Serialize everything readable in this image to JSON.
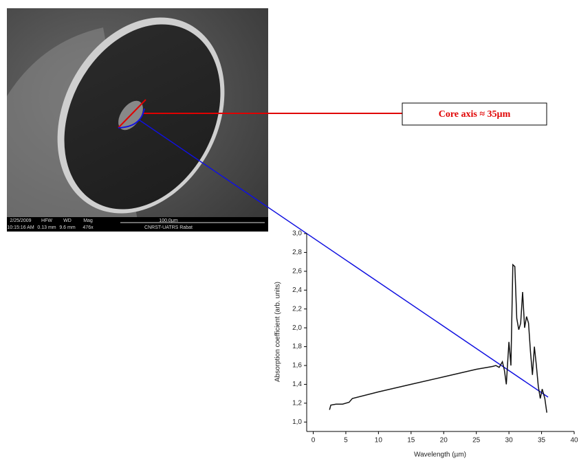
{
  "chart_data": {
    "type": "line",
    "xlabel": "Wavelength (µm)",
    "ylabel": "Absorption coefficient (arb. units)",
    "annotation": "Core axis ≈ 35µm",
    "color": "#111111",
    "x": [
      2.5,
      2.7,
      3.5,
      4.5,
      5.5,
      6,
      10,
      15,
      20,
      25,
      27.5,
      28,
      28.5,
      29,
      29.3,
      29.6,
      30,
      30.3,
      30.6,
      30.9,
      31.2,
      31.5,
      31.8,
      32.1,
      32.4,
      32.7,
      33,
      33.3,
      33.6,
      33.9,
      34.2,
      34.5,
      34.8,
      35.1,
      35.5,
      35.8
    ],
    "values": [
      1.13,
      1.18,
      1.19,
      1.19,
      1.21,
      1.25,
      1.32,
      1.4,
      1.48,
      1.56,
      1.59,
      1.6,
      1.58,
      1.64,
      1.55,
      1.4,
      1.85,
      1.6,
      2.67,
      2.65,
      2.1,
      1.98,
      2.05,
      2.38,
      2.0,
      2.12,
      2.05,
      1.75,
      1.5,
      1.8,
      1.6,
      1.38,
      1.25,
      1.35,
      1.25,
      1.1
    ],
    "xlim": [
      -1,
      40
    ],
    "ylim": [
      0.9,
      3.0
    ],
    "xticks": [
      0,
      5,
      10,
      15,
      20,
      25,
      30,
      35,
      40
    ],
    "yticks": [
      {
        "value": 1.0,
        "label": "1,0"
      },
      {
        "value": 1.2,
        "label": "1,2"
      },
      {
        "value": 1.4,
        "label": "1,4"
      },
      {
        "value": 1.6,
        "label": "1,6"
      },
      {
        "value": 1.8,
        "label": "1,8"
      },
      {
        "value": 2.0,
        "label": "2,0"
      },
      {
        "value": 2.2,
        "label": "2,2"
      },
      {
        "value": 2.4,
        "label": "2,4"
      },
      {
        "value": 2.6,
        "label": "2,6"
      },
      {
        "value": 2.8,
        "label": "2,8"
      },
      {
        "value": 3.0,
        "label": "3,0"
      }
    ]
  },
  "sem_image": {
    "row1": [
      "2/25/2009",
      "HFW",
      "WD",
      "Mag",
      "100.0μm"
    ],
    "row2": [
      "10:15:16 AM",
      "0.13 mm",
      "9.6 mm",
      "476x",
      "CNRST-UATRS Rabat"
    ]
  }
}
